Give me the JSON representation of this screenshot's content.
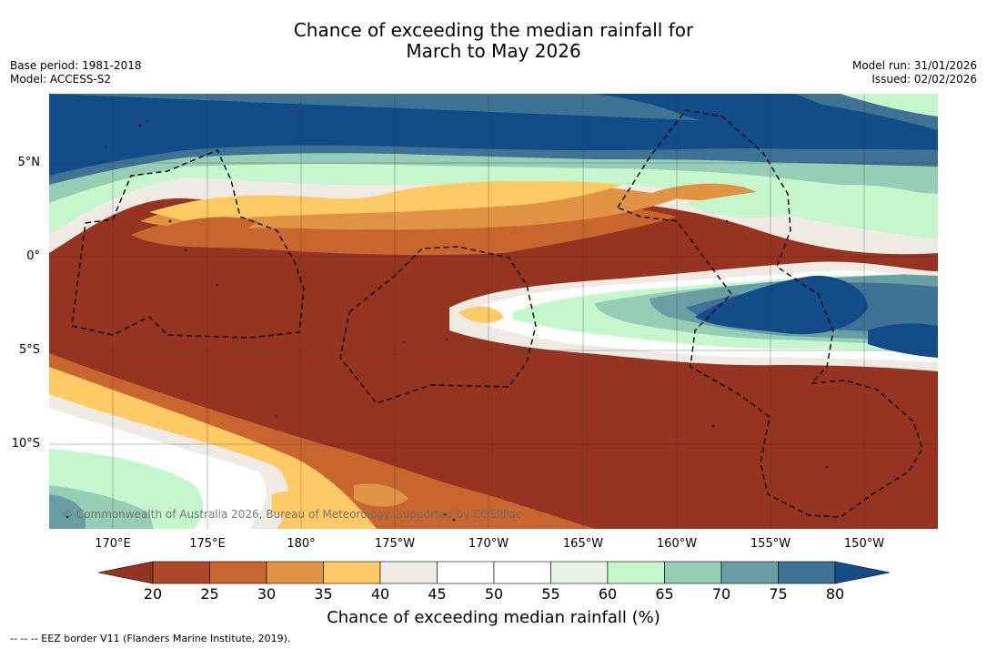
{
  "title": {
    "line1": "Chance of exceeding the median rainfall for",
    "line2": "March to May 2026"
  },
  "info_left": {
    "base_period": "Base period: 1981-2018",
    "model": "Model: ACCESS-S2"
  },
  "info_right": {
    "model_run": "Model run: 31/01/2026",
    "issued": "Issued: 02/02/2026"
  },
  "lat_labels": [
    "5°N",
    "0°",
    "5°S",
    "10°S"
  ],
  "lon_labels": [
    "170°E",
    "175°E",
    "180°",
    "175°W",
    "170°W",
    "165°W",
    "160°W",
    "155°W",
    "150°W"
  ],
  "copyright": "© Commonwealth of Australia 2026, Bureau of Meteorology, supported by COSPPac",
  "colorbar": {
    "title": "Chance of exceeding median rainfall (%)",
    "ticks": [
      "20",
      "25",
      "30",
      "35",
      "40",
      "45",
      "50",
      "55",
      "60",
      "65",
      "70",
      "75",
      "80"
    ],
    "colors": {
      "below_20": "#963421",
      "20_25": "#ad4829",
      "25_30": "#c9652f",
      "30_35": "#e09443",
      "35_40": "#fdca66",
      "40_45": "#efeae4",
      "45_55": "#ffffff",
      "55_60": "#e8f4e8",
      "60_65": "#c6f6cc",
      "65_70": "#95cdb5",
      "70_75": "#689fa4",
      "75_80": "#3f7396",
      "above_80": "#124d89"
    }
  },
  "footnote": "-- -- -- EEZ border V11 (Flanders Marine Institute, 2019)."
}
